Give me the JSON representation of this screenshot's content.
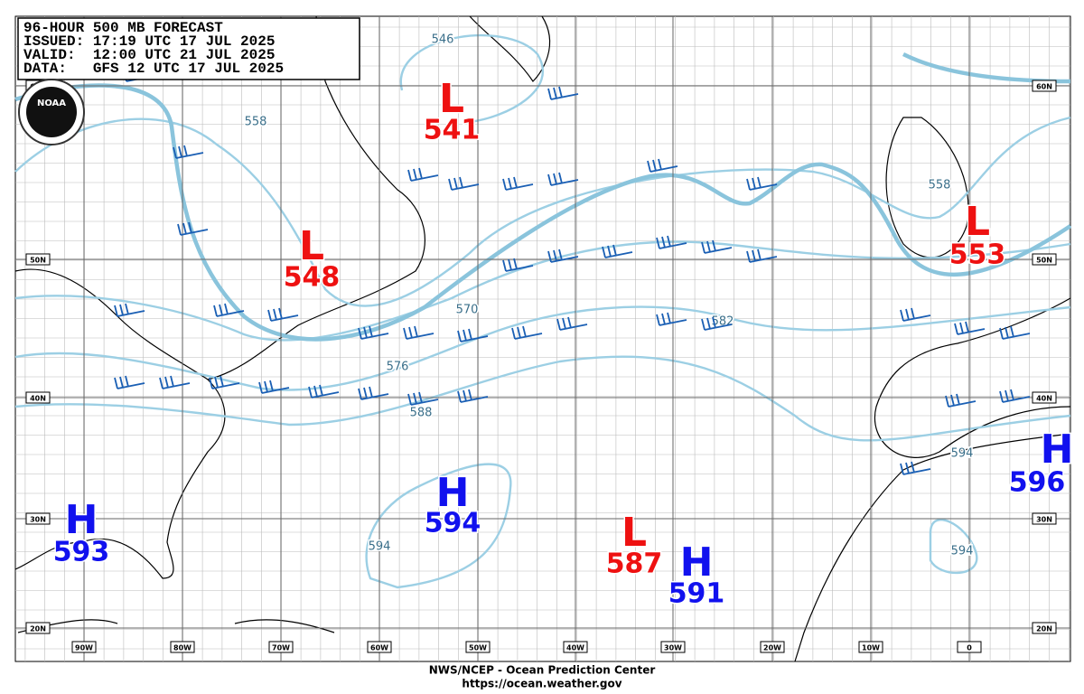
{
  "header": {
    "lines": [
      "96-HOUR 500 MB FORECAST",
      "ISSUED: 17:19 UTC 17 JUL 2025",
      "VALID:  12:00 UTC 21 JUL 2025",
      "DATA:   GFS 12 UTC 17 JUL 2025"
    ]
  },
  "logo": "NOAA",
  "centers": [
    {
      "kind": "L",
      "value": 541
    },
    {
      "kind": "L",
      "value": 548
    },
    {
      "kind": "L",
      "value": 553
    },
    {
      "kind": "L",
      "value": 587
    },
    {
      "kind": "H",
      "value": 594
    },
    {
      "kind": "H",
      "value": 593
    },
    {
      "kind": "H",
      "value": 591
    },
    {
      "kind": "H",
      "value": 596
    }
  ],
  "contour_labels": [
    546,
    558,
    570,
    576,
    582,
    588,
    594,
    594,
    594,
    558
  ],
  "lat_labels": [
    "60N",
    "50N",
    "40N",
    "30N",
    "20N"
  ],
  "lon_labels": [
    "90W",
    "80W",
    "70W",
    "60W",
    "50W",
    "40W",
    "30W",
    "20W",
    "10W",
    "0"
  ],
  "footer": [
    "NWS/NCEP - Ocean Prediction Center",
    "https://ocean.weather.gov"
  ]
}
